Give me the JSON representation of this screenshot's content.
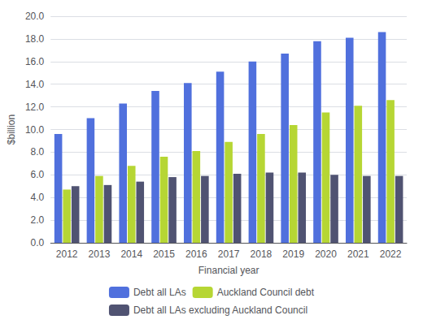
{
  "chart_data": {
    "type": "bar",
    "categories": [
      "2012",
      "2013",
      "2014",
      "2015",
      "2016",
      "2017",
      "2018",
      "2019",
      "2020",
      "2021",
      "2022"
    ],
    "series": [
      {
        "name": "Debt all LAs",
        "values": [
          9.6,
          11.0,
          12.3,
          13.4,
          14.1,
          15.1,
          16.0,
          16.7,
          17.8,
          18.1,
          18.6
        ]
      },
      {
        "name": "Auckland Council debt",
        "values": [
          4.7,
          5.9,
          6.8,
          7.6,
          8.1,
          8.9,
          9.6,
          10.4,
          11.5,
          12.1,
          12.6
        ]
      },
      {
        "name": "Debt all LAs excluding Auckland Council",
        "values": [
          5.0,
          5.1,
          5.4,
          5.8,
          5.9,
          6.1,
          6.2,
          6.2,
          6.0,
          5.9,
          5.9
        ]
      }
    ],
    "xlabel": "Financial year",
    "ylabel": "$billion",
    "ylim": [
      0,
      20.0
    ],
    "yticks": [
      {
        "value": 0.0,
        "label": "0.0"
      },
      {
        "value": 2.0,
        "label": "2.0"
      },
      {
        "value": 4.0,
        "label": "4.0"
      },
      {
        "value": 6.0,
        "label": "6.0"
      },
      {
        "value": 8.0,
        "label": "8.0"
      },
      {
        "value": 10.0,
        "label": "10.0"
      },
      {
        "value": 12.0,
        "label": "12.0"
      },
      {
        "value": 14.0,
        "label": "14.0"
      },
      {
        "value": 16.0,
        "label": "16.0"
      },
      {
        "value": 18.0,
        "label": "18.0"
      },
      {
        "value": 20.0,
        "label": "20.0"
      }
    ],
    "grid": true,
    "legend": "bottom"
  }
}
